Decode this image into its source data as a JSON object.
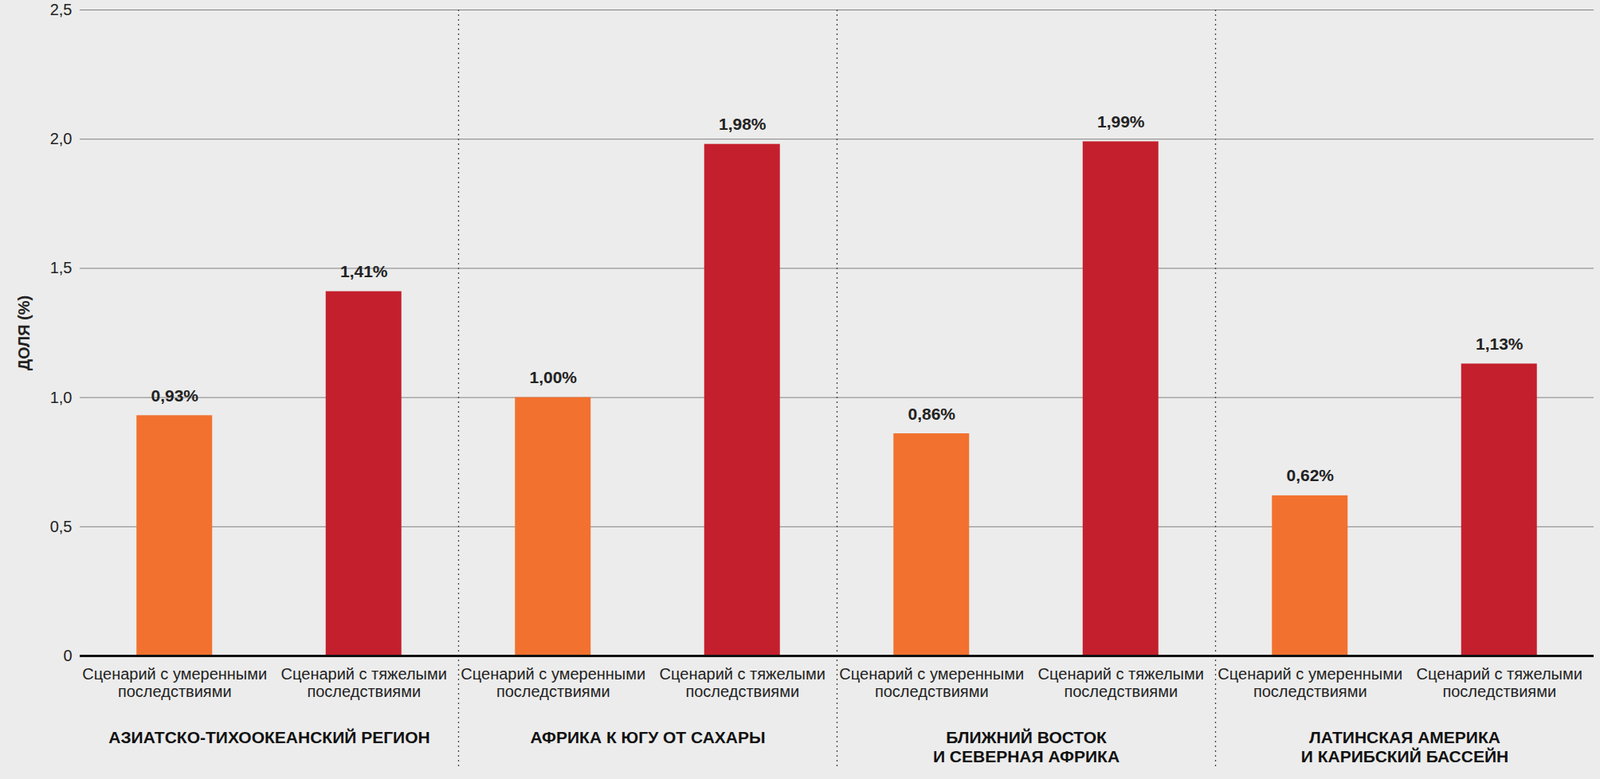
{
  "chart_data": {
    "type": "bar",
    "y_label": "ДОЛЯ (%)",
    "categories": [
      "АЗИАТСКО-ТИХООКЕАНСКИЙ РЕГИОН",
      "АФРИКА К ЮГУ ОТ САХАРЫ",
      "БЛИЖНИЙ ВОСТОК\nИ СЕВЕРНАЯ АФРИКА",
      "ЛАТИНСКАЯ АМЕРИКА\nИ КАРИБСКИЙ БАССЕЙН"
    ],
    "series": [
      {
        "name": "Сценарий с умеренными\nпоследствиями",
        "color": "#f2712f",
        "values": [
          0.93,
          1.0,
          0.86,
          0.62
        ],
        "value_labels": [
          "0,93%",
          "1,00%",
          "0,86%",
          "0,62%"
        ]
      },
      {
        "name": "Сценарий с тяжелыми\nпоследствиями",
        "color": "#c41f2c",
        "values": [
          1.41,
          1.98,
          1.99,
          1.13
        ],
        "value_labels": [
          "1,41%",
          "1,98%",
          "1,99%",
          "1,13%"
        ]
      }
    ],
    "ylim": [
      0,
      2.5
    ],
    "yticks": [
      0,
      {
        "value": 0.5,
        "label": "0,5"
      },
      {
        "value": 1.0,
        "label": "1,0"
      },
      {
        "value": 1.5,
        "label": "1,5"
      },
      {
        "value": 2.0,
        "label": "2,0"
      },
      {
        "value": 2.5,
        "label": "2,5"
      }
    ],
    "grid": true,
    "data_labels": true
  }
}
